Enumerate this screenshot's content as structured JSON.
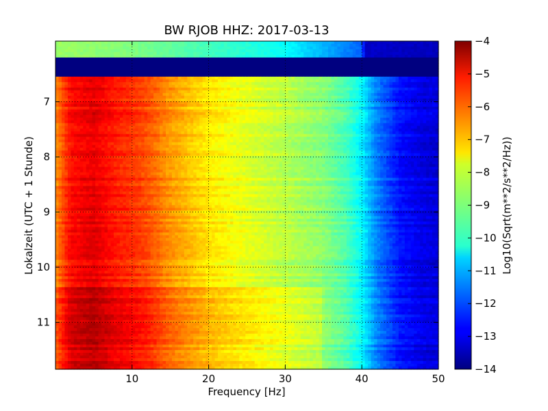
{
  "chart_data": {
    "type": "heatmap",
    "title": "BW RJOB HHZ: 2017-03-13",
    "xlabel": "Frequency [Hz]",
    "ylabel": "Lokalzeit (UTC + 1 Stunde)",
    "xlim": [
      0,
      50
    ],
    "ylim": [
      5.9,
      11.85
    ],
    "y_inverted": true,
    "x_ticks": [
      10,
      20,
      30,
      40,
      50
    ],
    "x_tick_labels": [
      "10",
      "20",
      "30",
      "40",
      "50"
    ],
    "y_ticks": [
      7,
      8,
      9,
      10,
      11
    ],
    "y_tick_labels": [
      "7",
      "8",
      "9",
      "10",
      "11"
    ],
    "grid": true,
    "colormap": "jet",
    "colorbar": {
      "label": "Log10(Sqrt(m**2/s**2/Hz))",
      "range": [
        -14,
        -4
      ],
      "ticks": [
        -4,
        -5,
        -6,
        -7,
        -8,
        -9,
        -10,
        -11,
        -12,
        -13,
        -14
      ],
      "tick_labels": [
        "−4",
        "−5",
        "−6",
        "−7",
        "−8",
        "−9",
        "−10",
        "−11",
        "−12",
        "−13",
        "−14"
      ]
    },
    "spectrum_profile": {
      "frequency_hz": [
        0,
        2,
        5,
        8,
        10,
        12,
        15,
        18,
        20,
        25,
        30,
        35,
        38,
        40,
        42,
        45,
        48,
        50
      ],
      "log10_amplitude": [
        -6.6,
        -5.3,
        -5.0,
        -5.5,
        -5.7,
        -6.0,
        -6.7,
        -7.2,
        -7.5,
        -8.0,
        -8.4,
        -8.9,
        -9.5,
        -10.3,
        -11.5,
        -12.6,
        -13.0,
        -13.1
      ]
    },
    "top_band": {
      "time_range": [
        5.9,
        6.2
      ],
      "frequency_hz": [
        0,
        10,
        20,
        30,
        40,
        40.5,
        50
      ],
      "log10_amplitude": [
        -8.7,
        -9.0,
        -9.6,
        -10.2,
        -11.8,
        -13.3,
        -13.4
      ]
    },
    "data_gap": {
      "time_range": [
        6.2,
        6.55
      ],
      "log10_amplitude": -14
    },
    "noisy_period": {
      "time_range": [
        10.35,
        11.85
      ],
      "offset": 0.4
    }
  }
}
